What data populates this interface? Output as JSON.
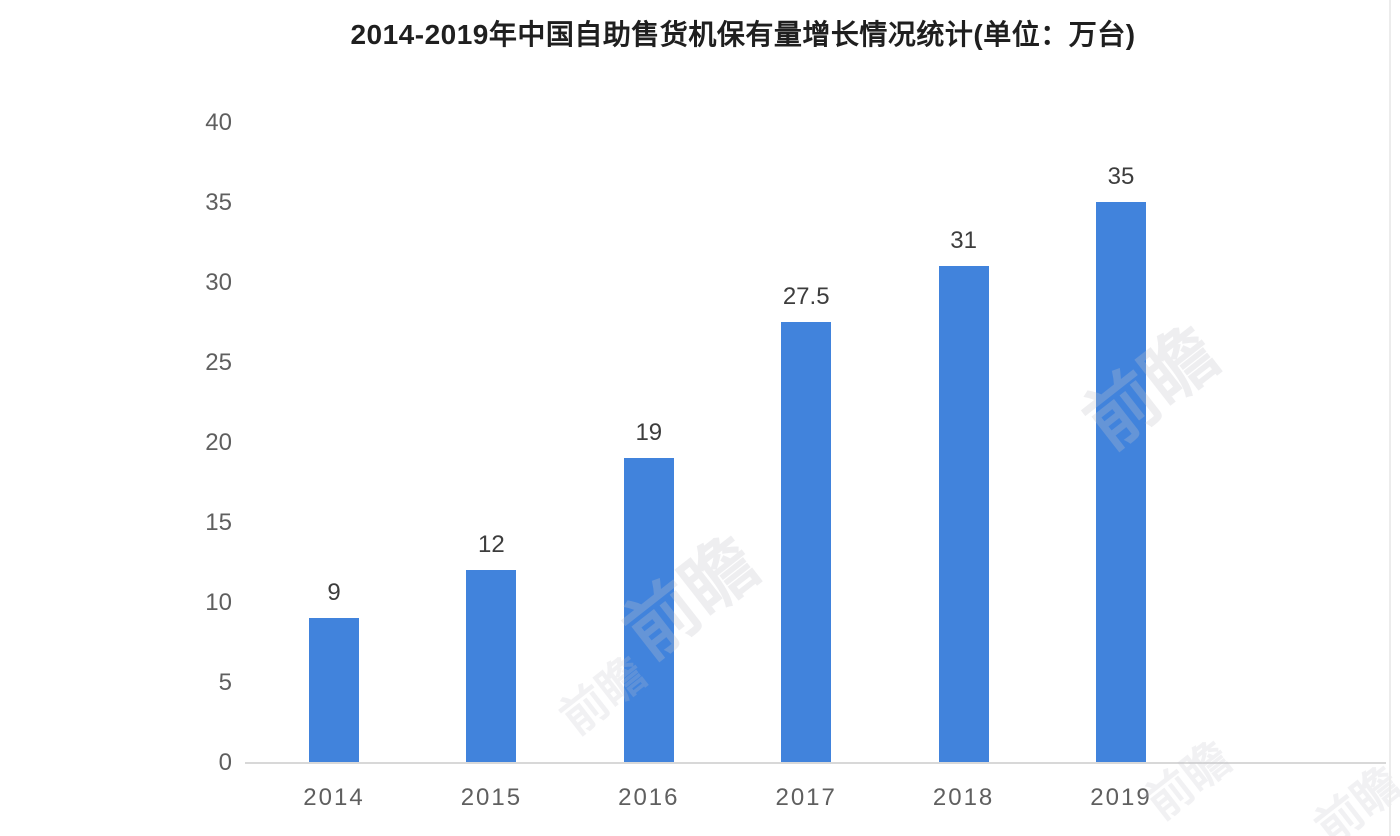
{
  "chart_data": {
    "type": "bar",
    "title": "2014-2019年中国自助售货机保有量增长情况统计(单位：万台)",
    "categories": [
      "2014",
      "2015",
      "2016",
      "2017",
      "2018",
      "2019"
    ],
    "values": [
      9,
      12,
      19,
      27.5,
      31,
      35
    ],
    "value_labels": [
      "9",
      "12",
      "19",
      "27.5",
      "31",
      "35"
    ],
    "xlabel": "",
    "ylabel": "",
    "ylim": [
      0,
      40
    ],
    "y_ticks": [
      0,
      5,
      10,
      15,
      20,
      25,
      30,
      35,
      40
    ],
    "grid": false,
    "legend_position": "none",
    "bar_color": "#4183DC",
    "axis_line_color": "#D8D8D8",
    "tick_label_color": "#5F5F5F",
    "value_label_color": "#3D3D3D",
    "title_color": "#1F1F1F"
  },
  "watermark": {
    "text": "前瞻",
    "color": "#C4C4CC"
  }
}
